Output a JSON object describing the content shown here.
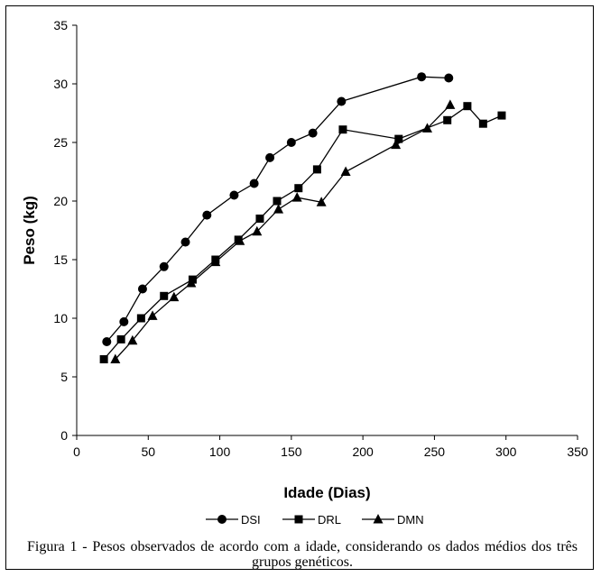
{
  "chart_data": {
    "type": "line",
    "xlabel": "Idade (Dias)",
    "ylabel": "Peso (kg)",
    "xlim": [
      0,
      350
    ],
    "ylim": [
      0,
      35
    ],
    "xticks": [
      "0",
      "50",
      "100",
      "150",
      "200",
      "250",
      "300",
      "350"
    ],
    "yticks": [
      "0",
      "5",
      "10",
      "15",
      "20",
      "25",
      "30",
      "35"
    ],
    "grid": false,
    "legend_position": "bottom",
    "series": [
      {
        "name": "DSI",
        "marker": "circle",
        "x": [
          21,
          33,
          46,
          61,
          76,
          91,
          110,
          124,
          135,
          150,
          165,
          185,
          241,
          260
        ],
        "y": [
          8.0,
          9.7,
          12.5,
          14.4,
          16.5,
          18.8,
          20.5,
          21.5,
          23.7,
          25.0,
          25.8,
          28.5,
          30.6,
          30.5
        ]
      },
      {
        "name": "DRL",
        "marker": "square",
        "x": [
          19,
          31,
          45,
          61,
          81,
          97,
          113,
          128,
          140,
          155,
          168,
          186,
          225,
          259,
          273,
          284,
          297
        ],
        "y": [
          6.5,
          8.2,
          10.0,
          11.9,
          13.3,
          15.0,
          16.7,
          18.5,
          20.0,
          21.1,
          22.7,
          26.1,
          25.3,
          26.9,
          28.1,
          26.6,
          27.3
        ]
      },
      {
        "name": "DMN",
        "marker": "triangle",
        "x": [
          27,
          39,
          53,
          68,
          80,
          97,
          114,
          126,
          141,
          154,
          171,
          188,
          223,
          245,
          261
        ],
        "y": [
          6.5,
          8.1,
          10.2,
          11.8,
          13.0,
          14.8,
          16.6,
          17.4,
          19.3,
          20.3,
          19.9,
          22.5,
          24.8,
          26.2,
          28.2
        ]
      }
    ]
  },
  "caption": "Figura 1 - Pesos observados de acordo com a idade, considerando os dados médios dos três grupos genéticos."
}
